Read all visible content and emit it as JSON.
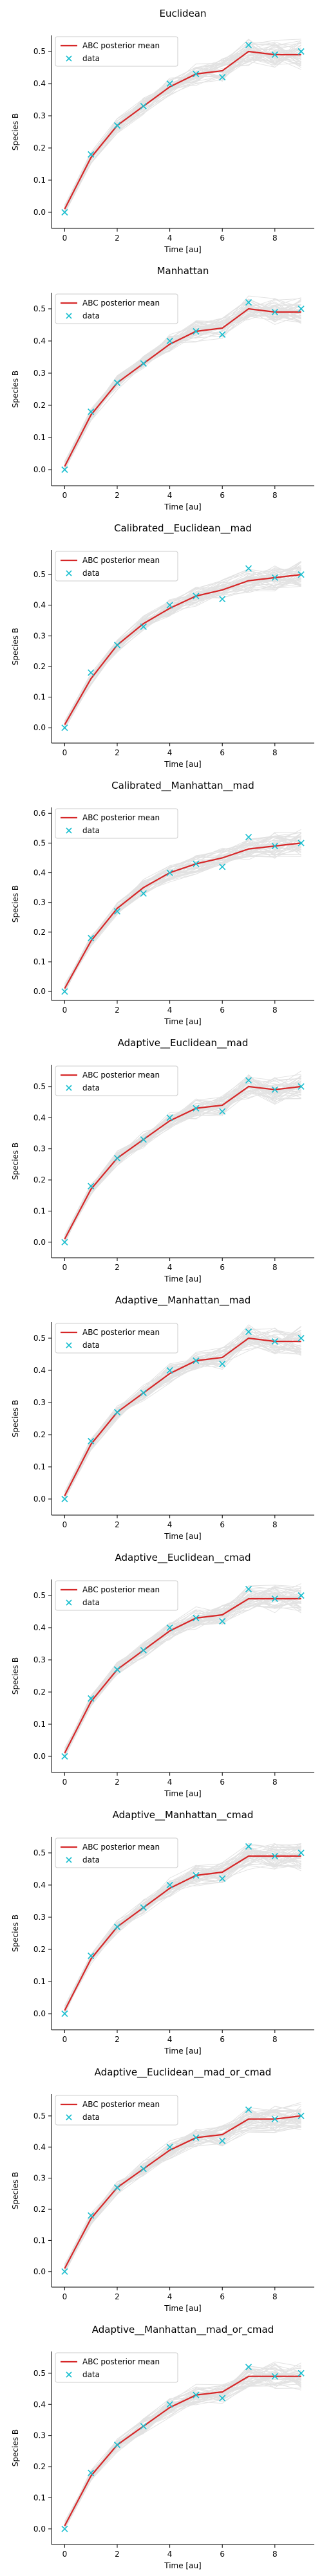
{
  "figure": {
    "xlabel": "Time [au]",
    "ylabel": "Species B",
    "legend": {
      "mean_label": "ABC posterior mean",
      "data_label": "data",
      "placement": "top-left"
    },
    "colors": {
      "mean": "#d62728",
      "data": "#17becf",
      "samples": "#7f7f7f",
      "axis": "#000000"
    }
  },
  "chart_data": [
    {
      "type": "line",
      "title": "Euclidean",
      "x": [
        0,
        1,
        2,
        3,
        4,
        5,
        6,
        7,
        8,
        9
      ],
      "series": [
        {
          "name": "ABC posterior mean",
          "values": [
            0.01,
            0.17,
            0.27,
            0.33,
            0.39,
            0.43,
            0.44,
            0.5,
            0.49,
            0.49
          ]
        },
        {
          "name": "data",
          "values": [
            0.0,
            0.18,
            0.27,
            0.33,
            0.4,
            0.43,
            0.42,
            0.52,
            0.49,
            0.5
          ]
        }
      ],
      "xlim": [
        -0.5,
        9.5
      ],
      "ylim": [
        -0.05,
        0.55
      ],
      "xticks": [
        0,
        2,
        4,
        6,
        8
      ],
      "yticks": [
        0.0,
        0.1,
        0.2,
        0.3,
        0.4,
        0.5
      ]
    },
    {
      "type": "line",
      "title": "Manhattan",
      "x": [
        0,
        1,
        2,
        3,
        4,
        5,
        6,
        7,
        8,
        9
      ],
      "series": [
        {
          "name": "ABC posterior mean",
          "values": [
            0.01,
            0.17,
            0.27,
            0.33,
            0.39,
            0.43,
            0.44,
            0.5,
            0.49,
            0.49
          ]
        },
        {
          "name": "data",
          "values": [
            0.0,
            0.18,
            0.27,
            0.33,
            0.4,
            0.43,
            0.42,
            0.52,
            0.49,
            0.5
          ]
        }
      ],
      "xlim": [
        -0.5,
        9.5
      ],
      "ylim": [
        -0.05,
        0.55
      ],
      "xticks": [
        0,
        2,
        4,
        6,
        8
      ],
      "yticks": [
        0.0,
        0.1,
        0.2,
        0.3,
        0.4,
        0.5
      ]
    },
    {
      "type": "line",
      "title": "Calibrated__Euclidean__mad",
      "x": [
        0,
        1,
        2,
        3,
        4,
        5,
        6,
        7,
        8,
        9
      ],
      "series": [
        {
          "name": "ABC posterior mean",
          "values": [
            0.01,
            0.16,
            0.27,
            0.34,
            0.39,
            0.43,
            0.45,
            0.48,
            0.49,
            0.5
          ]
        },
        {
          "name": "data",
          "values": [
            0.0,
            0.18,
            0.27,
            0.33,
            0.4,
            0.43,
            0.42,
            0.52,
            0.49,
            0.5
          ]
        }
      ],
      "xlim": [
        -0.5,
        9.5
      ],
      "ylim": [
        -0.05,
        0.58
      ],
      "xticks": [
        0,
        2,
        4,
        6,
        8
      ],
      "yticks": [
        0.0,
        0.1,
        0.2,
        0.3,
        0.4,
        0.5
      ]
    },
    {
      "type": "line",
      "title": "Calibrated__Manhattan__mad",
      "x": [
        0,
        1,
        2,
        3,
        4,
        5,
        6,
        7,
        8,
        9
      ],
      "series": [
        {
          "name": "ABC posterior mean",
          "values": [
            0.01,
            0.17,
            0.28,
            0.35,
            0.4,
            0.43,
            0.45,
            0.48,
            0.49,
            0.5
          ]
        },
        {
          "name": "data",
          "values": [
            0.0,
            0.18,
            0.27,
            0.33,
            0.4,
            0.43,
            0.42,
            0.52,
            0.49,
            0.5
          ]
        }
      ],
      "xlim": [
        -0.5,
        9.5
      ],
      "ylim": [
        -0.03,
        0.62
      ],
      "xticks": [
        0,
        2,
        4,
        6,
        8
      ],
      "yticks": [
        0.0,
        0.1,
        0.2,
        0.3,
        0.4,
        0.5,
        0.6
      ]
    },
    {
      "type": "line",
      "title": "Adaptive__Euclidean__mad",
      "x": [
        0,
        1,
        2,
        3,
        4,
        5,
        6,
        7,
        8,
        9
      ],
      "series": [
        {
          "name": "ABC posterior mean",
          "values": [
            0.01,
            0.17,
            0.27,
            0.33,
            0.39,
            0.43,
            0.44,
            0.5,
            0.49,
            0.5
          ]
        },
        {
          "name": "data",
          "values": [
            0.0,
            0.18,
            0.27,
            0.33,
            0.4,
            0.43,
            0.42,
            0.52,
            0.49,
            0.5
          ]
        }
      ],
      "xlim": [
        -0.5,
        9.5
      ],
      "ylim": [
        -0.05,
        0.57
      ],
      "xticks": [
        0,
        2,
        4,
        6,
        8
      ],
      "yticks": [
        0.0,
        0.1,
        0.2,
        0.3,
        0.4,
        0.5
      ]
    },
    {
      "type": "line",
      "title": "Adaptive__Manhattan__mad",
      "x": [
        0,
        1,
        2,
        3,
        4,
        5,
        6,
        7,
        8,
        9
      ],
      "series": [
        {
          "name": "ABC posterior mean",
          "values": [
            0.01,
            0.17,
            0.27,
            0.33,
            0.39,
            0.43,
            0.44,
            0.5,
            0.49,
            0.49
          ]
        },
        {
          "name": "data",
          "values": [
            0.0,
            0.18,
            0.27,
            0.33,
            0.4,
            0.43,
            0.42,
            0.52,
            0.49,
            0.5
          ]
        }
      ],
      "xlim": [
        -0.5,
        9.5
      ],
      "ylim": [
        -0.05,
        0.55
      ],
      "xticks": [
        0,
        2,
        4,
        6,
        8
      ],
      "yticks": [
        0.0,
        0.1,
        0.2,
        0.3,
        0.4,
        0.5
      ]
    },
    {
      "type": "line",
      "title": "Adaptive__Euclidean__cmad",
      "x": [
        0,
        1,
        2,
        3,
        4,
        5,
        6,
        7,
        8,
        9
      ],
      "series": [
        {
          "name": "ABC posterior mean",
          "values": [
            0.01,
            0.17,
            0.27,
            0.33,
            0.39,
            0.43,
            0.44,
            0.49,
            0.49,
            0.49
          ]
        },
        {
          "name": "data",
          "values": [
            0.0,
            0.18,
            0.27,
            0.33,
            0.4,
            0.43,
            0.42,
            0.52,
            0.49,
            0.5
          ]
        }
      ],
      "xlim": [
        -0.5,
        9.5
      ],
      "ylim": [
        -0.05,
        0.55
      ],
      "xticks": [
        0,
        2,
        4,
        6,
        8
      ],
      "yticks": [
        0.0,
        0.1,
        0.2,
        0.3,
        0.4,
        0.5
      ]
    },
    {
      "type": "line",
      "title": "Adaptive__Manhattan__cmad",
      "x": [
        0,
        1,
        2,
        3,
        4,
        5,
        6,
        7,
        8,
        9
      ],
      "series": [
        {
          "name": "ABC posterior mean",
          "values": [
            0.01,
            0.17,
            0.27,
            0.33,
            0.39,
            0.43,
            0.44,
            0.49,
            0.49,
            0.49
          ]
        },
        {
          "name": "data",
          "values": [
            0.0,
            0.18,
            0.27,
            0.33,
            0.4,
            0.43,
            0.42,
            0.52,
            0.49,
            0.5
          ]
        }
      ],
      "xlim": [
        -0.5,
        9.5
      ],
      "ylim": [
        -0.05,
        0.55
      ],
      "xticks": [
        0,
        2,
        4,
        6,
        8
      ],
      "yticks": [
        0.0,
        0.1,
        0.2,
        0.3,
        0.4,
        0.5
      ]
    },
    {
      "type": "line",
      "title": "Adaptive__Euclidean__mad_or_cmad",
      "x": [
        0,
        1,
        2,
        3,
        4,
        5,
        6,
        7,
        8,
        9
      ],
      "series": [
        {
          "name": "ABC posterior mean",
          "values": [
            0.01,
            0.17,
            0.27,
            0.33,
            0.39,
            0.43,
            0.44,
            0.49,
            0.49,
            0.5
          ]
        },
        {
          "name": "data",
          "values": [
            0.0,
            0.18,
            0.27,
            0.33,
            0.4,
            0.43,
            0.42,
            0.52,
            0.49,
            0.5
          ]
        }
      ],
      "xlim": [
        -0.5,
        9.5
      ],
      "ylim": [
        -0.05,
        0.57
      ],
      "xticks": [
        0,
        2,
        4,
        6,
        8
      ],
      "yticks": [
        0.0,
        0.1,
        0.2,
        0.3,
        0.4,
        0.5
      ]
    },
    {
      "type": "line",
      "title": "Adaptive__Manhattan__mad_or_cmad",
      "x": [
        0,
        1,
        2,
        3,
        4,
        5,
        6,
        7,
        8,
        9
      ],
      "series": [
        {
          "name": "ABC posterior mean",
          "values": [
            0.01,
            0.17,
            0.27,
            0.33,
            0.39,
            0.43,
            0.44,
            0.49,
            0.49,
            0.49
          ]
        },
        {
          "name": "data",
          "values": [
            0.0,
            0.18,
            0.27,
            0.33,
            0.4,
            0.43,
            0.42,
            0.52,
            0.49,
            0.5
          ]
        }
      ],
      "xlim": [
        -0.5,
        9.5
      ],
      "ylim": [
        -0.05,
        0.57
      ],
      "xticks": [
        0,
        2,
        4,
        6,
        8
      ],
      "yticks": [
        0.0,
        0.1,
        0.2,
        0.3,
        0.4,
        0.5
      ]
    }
  ]
}
